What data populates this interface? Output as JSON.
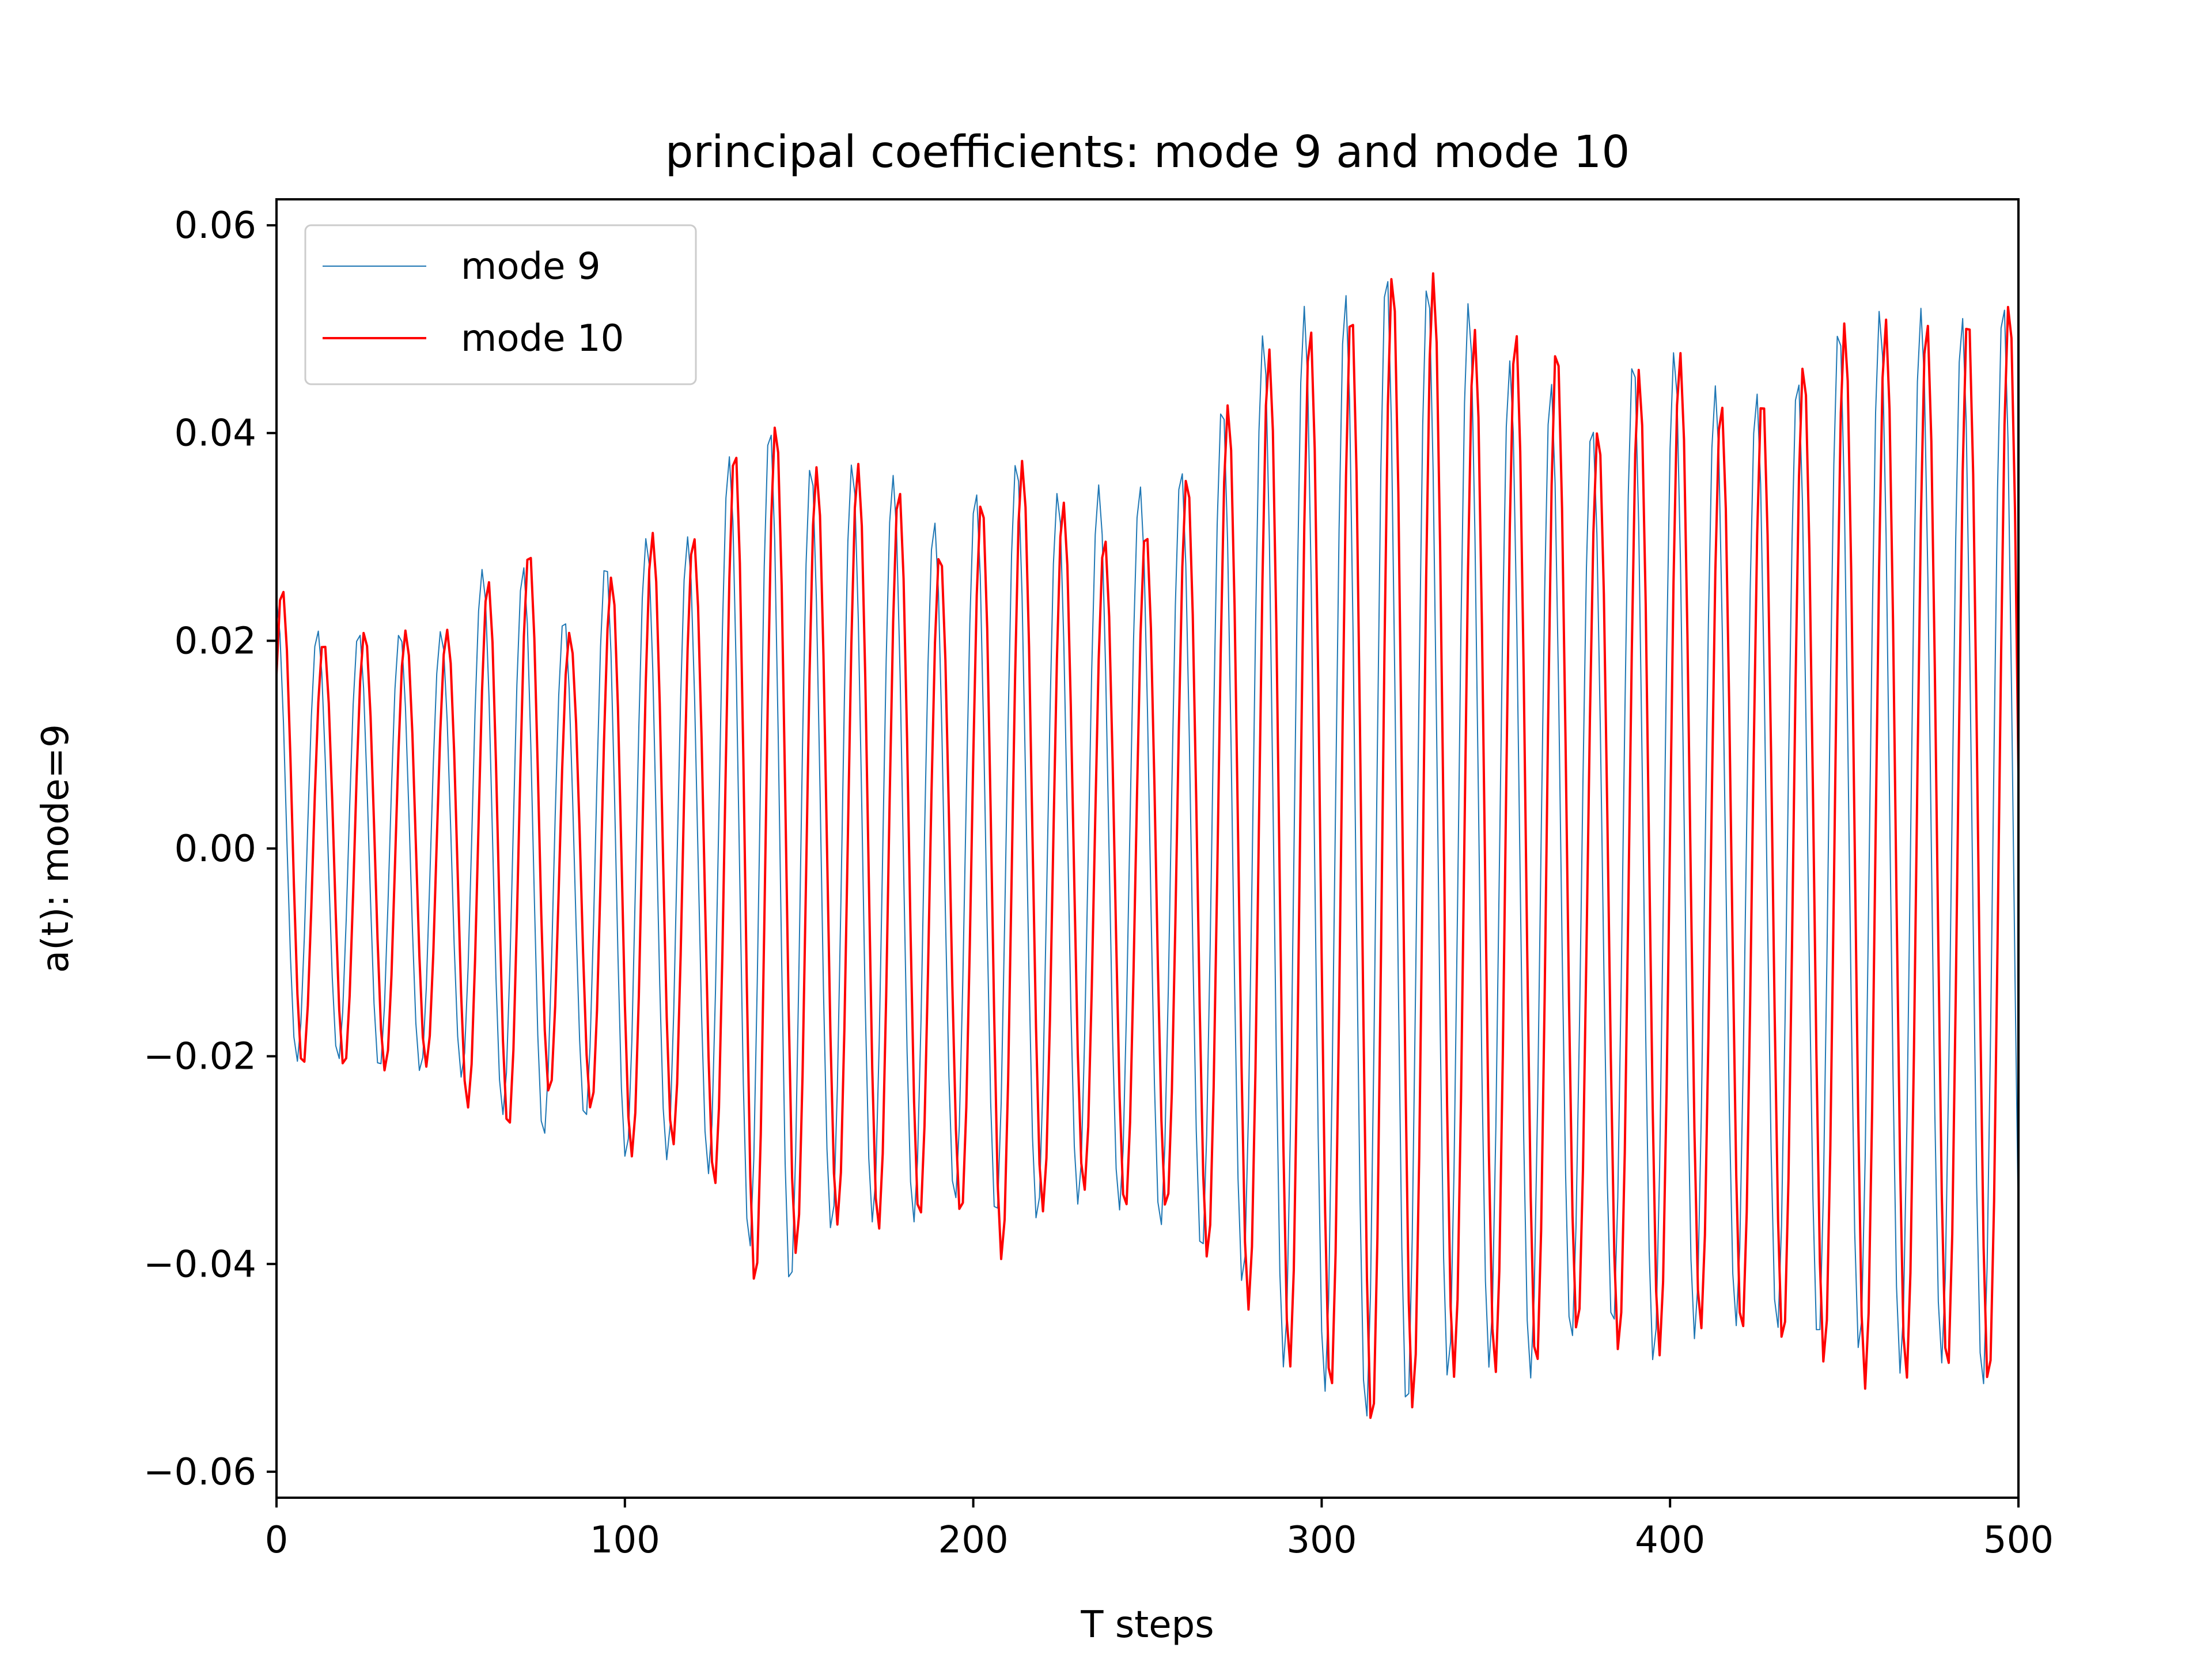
{
  "chart_data": {
    "type": "line",
    "title": "principal coefficients: mode 9 and mode 10",
    "xlabel": "T steps",
    "ylabel": "a(t): mode=9",
    "xlim": [
      0,
      500
    ],
    "ylim": [
      -0.0625,
      0.0625
    ],
    "x_ticks": [
      0,
      100,
      200,
      300,
      400,
      500
    ],
    "x_tick_labels": [
      "0",
      "100",
      "200",
      "300",
      "400",
      "500"
    ],
    "y_ticks": [
      -0.06,
      -0.04,
      -0.02,
      0.0,
      0.02,
      0.04,
      0.06
    ],
    "y_tick_labels": [
      "−0.06",
      "−0.04",
      "−0.02",
      "0.00",
      "0.02",
      "0.04",
      "0.06"
    ],
    "grid": false,
    "legend_position": "top-left",
    "period": 11.8,
    "x_step": 1,
    "series": [
      {
        "name": "mode 9",
        "color": "#1f77b4",
        "envelope_max": [
          0.024,
          0.021,
          0.021,
          0.021,
          0.021,
          0.028,
          0.027,
          0.021,
          0.03,
          0.03,
          0.03,
          0.042,
          0.04,
          0.035,
          0.039,
          0.033,
          0.03,
          0.04,
          0.034,
          0.035,
          0.035,
          0.035,
          0.041,
          0.049,
          0.052,
          0.053,
          0.056,
          0.055,
          0.053,
          0.047,
          0.045,
          0.041,
          0.048,
          0.048,
          0.044,
          0.044,
          0.046,
          0.052,
          0.052,
          0.052,
          0.051,
          0.054
        ],
        "envelope_min": [
          -0.021,
          -0.02,
          -0.021,
          -0.022,
          -0.021,
          -0.024,
          -0.029,
          -0.025,
          -0.03,
          -0.03,
          -0.03,
          -0.038,
          -0.043,
          -0.037,
          -0.036,
          -0.036,
          -0.034,
          -0.036,
          -0.036,
          -0.034,
          -0.035,
          -0.037,
          -0.04,
          -0.043,
          -0.053,
          -0.052,
          -0.057,
          -0.053,
          -0.05,
          -0.05,
          -0.052,
          -0.043,
          -0.051,
          -0.048,
          -0.046,
          -0.046,
          -0.048,
          -0.048,
          -0.051,
          -0.049,
          -0.052,
          -0.053
        ]
      },
      {
        "name": "mode 10",
        "color": "#ff0000",
        "envelope_max": [
          0.026,
          0.02,
          0.021,
          0.021,
          0.021,
          0.026,
          0.029,
          0.02,
          0.027,
          0.031,
          0.03,
          0.041,
          0.041,
          0.035,
          0.038,
          0.033,
          0.026,
          0.039,
          0.036,
          0.031,
          0.029,
          0.033,
          0.04,
          0.047,
          0.05,
          0.051,
          0.055,
          0.057,
          0.05,
          0.05,
          0.05,
          0.04,
          0.046,
          0.048,
          0.043,
          0.044,
          0.047,
          0.051,
          0.051,
          0.051,
          0.052,
          0.053
        ],
        "envelope_min": [
          -0.023,
          -0.02,
          -0.022,
          -0.021,
          -0.021,
          -0.029,
          -0.025,
          -0.022,
          -0.03,
          -0.029,
          -0.028,
          -0.043,
          -0.04,
          -0.036,
          -0.037,
          -0.036,
          -0.035,
          -0.04,
          -0.035,
          -0.033,
          -0.035,
          -0.035,
          -0.04,
          -0.045,
          -0.051,
          -0.053,
          -0.057,
          -0.053,
          -0.05,
          -0.051,
          -0.05,
          -0.045,
          -0.051,
          -0.047,
          -0.046,
          -0.048,
          -0.048,
          -0.052,
          -0.052,
          -0.05,
          -0.052,
          -0.052
        ]
      }
    ]
  }
}
